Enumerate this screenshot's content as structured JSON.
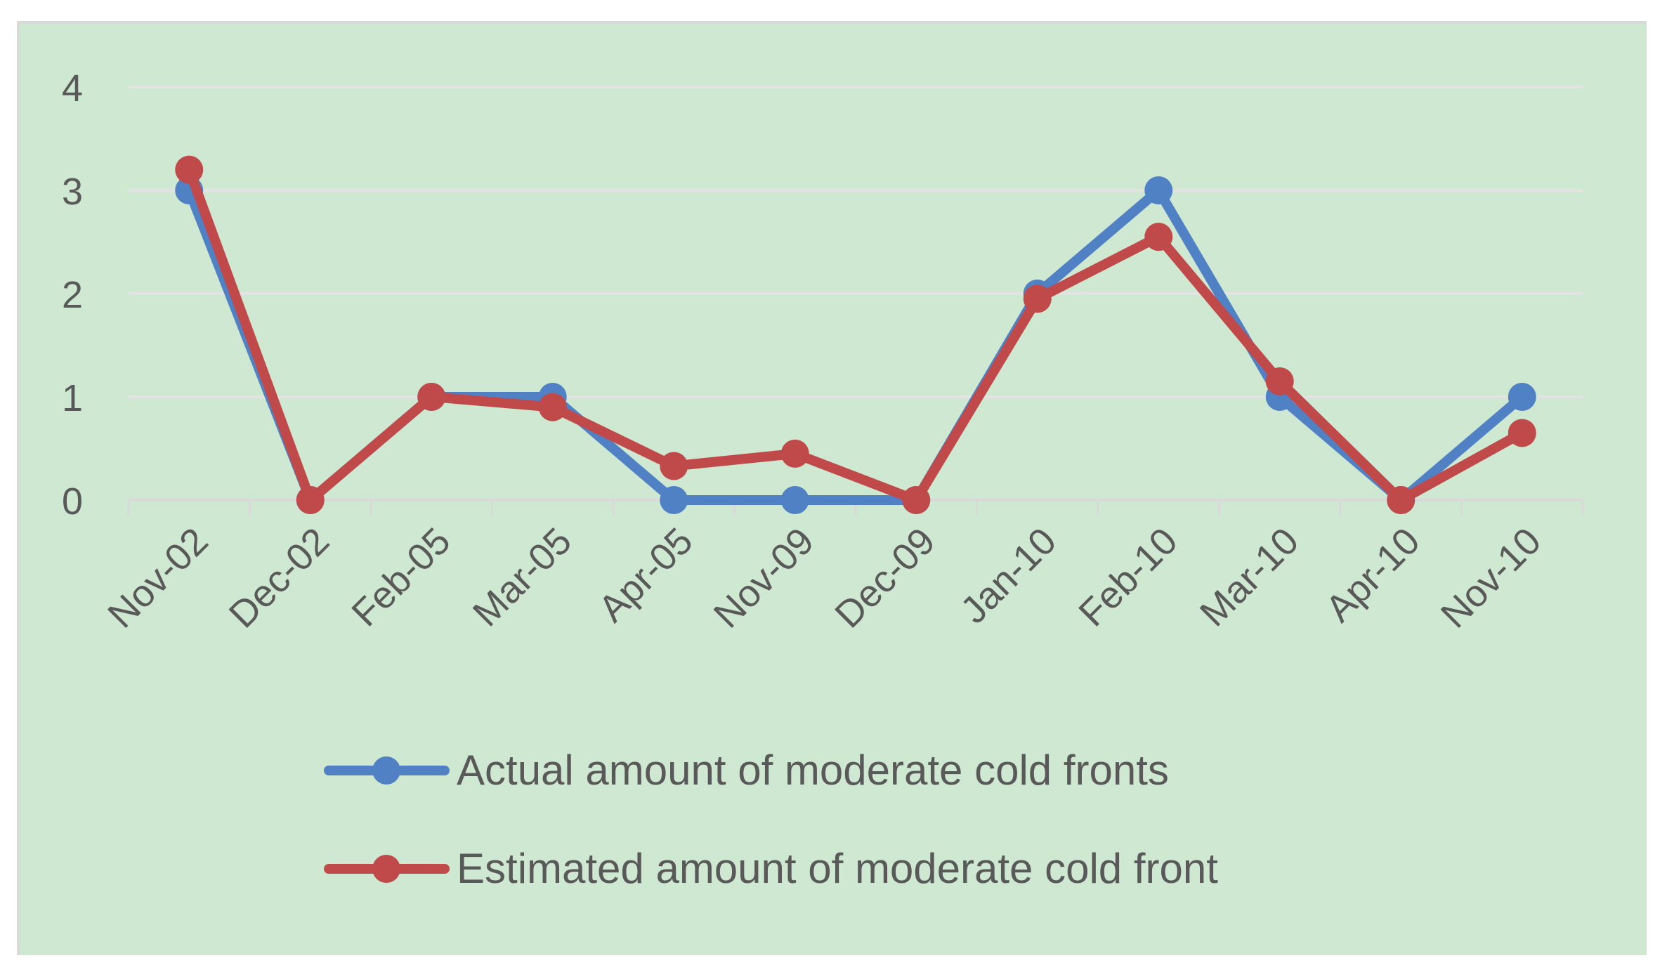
{
  "chart_data": {
    "type": "line",
    "title": "",
    "xlabel": "",
    "ylabel": "",
    "categories": [
      "Nov-02",
      "Dec-02",
      "Feb-05",
      "Mar-05",
      "Apr-05",
      "Nov-09",
      "Dec-09",
      "Jan-10",
      "Feb-10",
      "Mar-10",
      "Apr-10",
      "Nov-10"
    ],
    "ylim": [
      0,
      4
    ],
    "yticks": [
      0,
      1,
      2,
      3,
      4
    ],
    "grid": true,
    "legend_position": "bottom",
    "background_color": "#cfe8d1",
    "grid_color": "#e3e3e3",
    "series": [
      {
        "name": "Actual amount of moderate cold fronts",
        "color": "#4f81c4",
        "values": [
          3,
          0,
          1,
          1,
          0,
          0,
          0,
          2,
          3,
          1,
          0,
          1
        ]
      },
      {
        "name": "Estimated amount of moderate cold front",
        "color": "#c0494a",
        "values": [
          3.2,
          0,
          1.0,
          0.9,
          0.33,
          0.45,
          0,
          1.95,
          2.55,
          1.15,
          0,
          0.65
        ]
      }
    ]
  }
}
